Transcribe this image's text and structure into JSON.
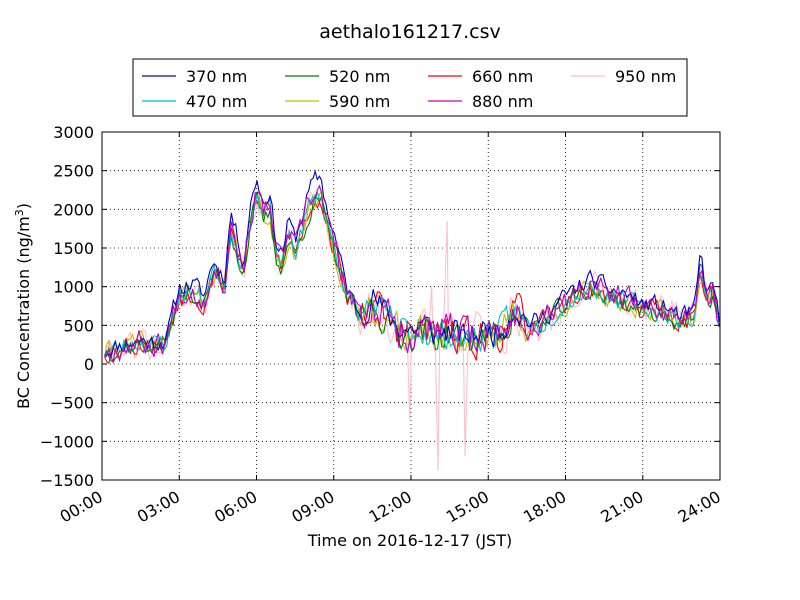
{
  "chart_data": {
    "type": "line",
    "title": "aethalo161217.csv",
    "xlabel": "Time on 2016-12-17 (JST)",
    "ylabel_main": "BC Concentration (ng/m",
    "ylabel_sup": "3",
    "ylabel_end": ")",
    "xlim": [
      0,
      24
    ],
    "ylim": [
      -1500,
      3000
    ],
    "x_ticks": [
      {
        "value": 0,
        "label": "00:00"
      },
      {
        "value": 3,
        "label": "03:00"
      },
      {
        "value": 6,
        "label": "06:00"
      },
      {
        "value": 9,
        "label": "09:00"
      },
      {
        "value": 12,
        "label": "12:00"
      },
      {
        "value": 15,
        "label": "15:00"
      },
      {
        "value": 18,
        "label": "18:00"
      },
      {
        "value": 21,
        "label": "21:00"
      },
      {
        "value": 24,
        "label": "24:00"
      }
    ],
    "y_ticks": [
      {
        "value": 3000,
        "label": "3000"
      },
      {
        "value": 2500,
        "label": "2500"
      },
      {
        "value": 2000,
        "label": "2000"
      },
      {
        "value": 1500,
        "label": "1500"
      },
      {
        "value": 1000,
        "label": "1000"
      },
      {
        "value": 500,
        "label": "500"
      },
      {
        "value": 0,
        "label": "0"
      },
      {
        "value": -500,
        "label": "−500"
      },
      {
        "value": -1000,
        "label": "−1000"
      },
      {
        "value": -1500,
        "label": "−1500"
      }
    ],
    "grid": true,
    "legend_position": "top-center",
    "base_profile": {
      "x": [
        0,
        0.5,
        1,
        1.5,
        2,
        2.5,
        3,
        3.5,
        4,
        4.25,
        4.5,
        4.75,
        5,
        5.5,
        5.75,
        6,
        6.25,
        6.5,
        6.75,
        7,
        7.25,
        7.5,
        8,
        8.25,
        8.5,
        8.75,
        9,
        9.5,
        10,
        10.5,
        11,
        11.5,
        12,
        12.5,
        13,
        13.5,
        14,
        14.5,
        15,
        15.5,
        16,
        16.5,
        17,
        17.5,
        18,
        18.5,
        19,
        19.5,
        20,
        20.5,
        21,
        21.5,
        22,
        22.5,
        23,
        23.25,
        23.5,
        23.75,
        24
      ],
      "y": [
        150,
        200,
        250,
        280,
        250,
        300,
        900,
        950,
        800,
        1200,
        1150,
        1000,
        1800,
        1200,
        1850,
        2200,
        1900,
        2050,
        1450,
        1300,
        1700,
        1450,
        2000,
        2150,
        2200,
        1800,
        1550,
        900,
        600,
        800,
        600,
        450,
        400,
        450,
        350,
        400,
        300,
        350,
        400,
        400,
        700,
        500,
        500,
        650,
        800,
        900,
        1000,
        900,
        850,
        800,
        700,
        700,
        650,
        550,
        600,
        1300,
        800,
        950,
        500
      ]
    },
    "series": [
      {
        "name": "370 nm",
        "color": "#0000cc",
        "gain": 1.1,
        "noise": 190,
        "seed": 11,
        "clampMin": -100
      },
      {
        "name": "470 nm",
        "color": "#00bfbf",
        "gain": 1.0,
        "noise": 200,
        "seed": 23,
        "clampMin": -100
      },
      {
        "name": "520 nm",
        "color": "#008000",
        "gain": 0.96,
        "noise": 200,
        "seed": 37,
        "clampMin": -150
      },
      {
        "name": "590 nm",
        "color": "#bfbf00",
        "gain": 0.97,
        "noise": 210,
        "seed": 41,
        "clampMin": -200
      },
      {
        "name": "660 nm",
        "color": "#ff0000",
        "gain": 0.99,
        "noise": 240,
        "seed": 53,
        "clampMin": -300
      },
      {
        "name": "880 nm",
        "color": "#bf00bf",
        "gain": 1.02,
        "noise": 260,
        "seed": 67,
        "clampMin": -200
      },
      {
        "name": "950 nm",
        "color": "#ffc0cb",
        "gain": 1.0,
        "noise": 320,
        "seed": 79,
        "clampMin": -1400
      }
    ],
    "spikes_950": [
      {
        "x": 11.95,
        "y": -730
      },
      {
        "x": 13.05,
        "y": -1380
      },
      {
        "x": 13.4,
        "y": 1850
      },
      {
        "x": 14.1,
        "y": -1190
      },
      {
        "x": 12.8,
        "y": 1000
      }
    ]
  }
}
